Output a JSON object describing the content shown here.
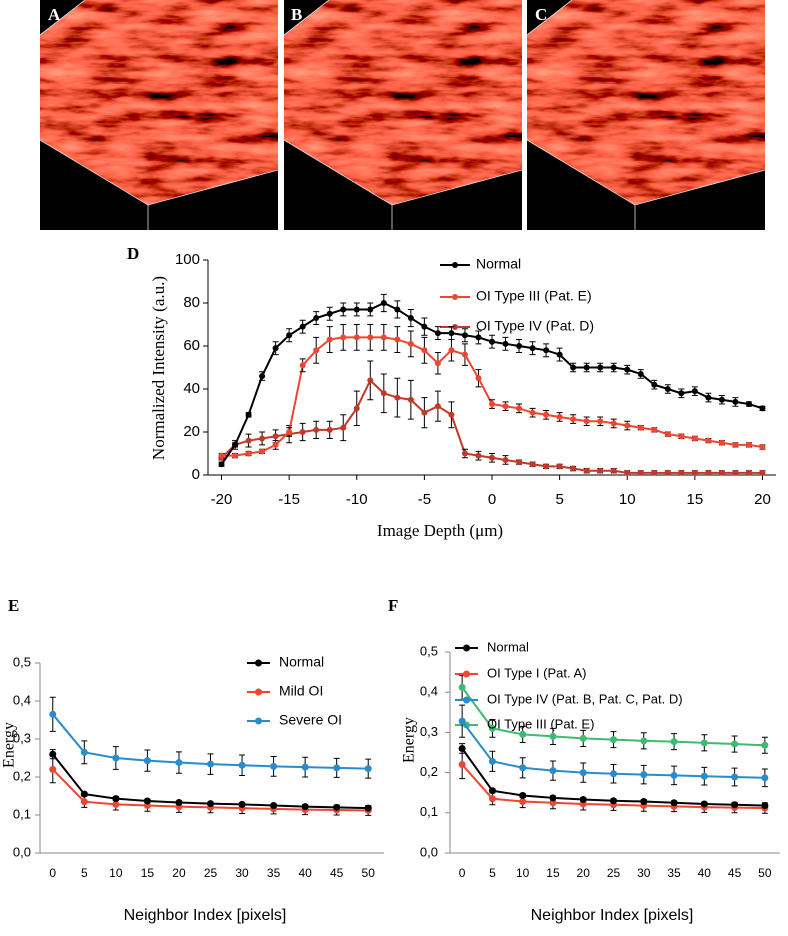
{
  "images": [
    {
      "label": "A"
    },
    {
      "label": "B"
    },
    {
      "label": "C"
    }
  ],
  "chart_data": [
    {
      "type": "line",
      "panel": "D",
      "ylabel": "Normalized Intensity (a.u.)",
      "xlabel": "Image Depth (μm)",
      "x": [
        -20,
        -19,
        -18,
        -17,
        -16,
        -15,
        -14,
        -13,
        -12,
        -11,
        -10,
        -9,
        -8,
        -7,
        -6,
        -5,
        -4,
        -3,
        -2,
        -1,
        0,
        1,
        2,
        3,
        4,
        5,
        6,
        7,
        8,
        9,
        10,
        11,
        12,
        13,
        14,
        15,
        16,
        17,
        18,
        19,
        20
      ],
      "xlim": [
        -21,
        21
      ],
      "ylim": [
        0,
        100
      ],
      "xticks": [
        -20,
        -15,
        -10,
        -5,
        0,
        5,
        10,
        15,
        20
      ],
      "yticks": [
        0,
        20,
        40,
        60,
        80,
        100
      ],
      "series": [
        {
          "name": "Normal",
          "color": "#000000",
          "values": [
            5,
            14,
            28,
            46,
            59,
            65,
            69,
            73,
            75,
            77,
            77,
            77,
            80,
            77,
            73,
            69,
            66,
            66,
            65,
            64,
            62,
            61,
            60,
            59,
            58,
            56,
            50,
            50,
            50,
            50,
            49,
            47,
            42,
            40,
            38,
            39,
            36,
            35,
            34,
            33,
            31
          ],
          "errors": [
            1,
            1,
            1,
            2,
            3,
            3,
            3,
            3,
            3,
            3,
            3,
            3,
            4,
            4,
            4,
            4,
            3,
            3,
            3,
            3,
            3,
            3,
            3,
            3,
            3,
            3,
            2,
            2,
            2,
            2,
            2,
            2,
            2,
            2,
            2,
            2,
            2,
            2,
            2,
            1,
            1
          ]
        },
        {
          "name": "OI Type III (Pat. E)",
          "color": "#ee4630",
          "values": [
            9,
            9,
            10,
            11,
            14,
            20,
            51,
            58,
            63,
            64,
            64,
            64,
            64,
            63,
            61,
            58,
            52,
            58,
            56,
            45,
            33,
            32,
            31,
            29,
            28,
            27,
            26,
            25,
            25,
            24,
            23,
            22,
            21,
            19,
            18,
            17,
            16,
            15,
            14,
            14,
            13
          ],
          "errors": [
            1,
            1,
            1,
            1,
            2,
            2,
            3,
            6,
            6,
            6,
            6,
            6,
            6,
            6,
            6,
            6,
            5,
            5,
            5,
            4,
            2,
            2,
            2,
            2,
            2,
            2,
            2,
            2,
            2,
            2,
            2,
            1,
            1,
            1,
            1,
            1,
            1,
            1,
            1,
            1,
            1
          ]
        },
        {
          "name": "OI Type IV (Pat. D)",
          "color": "#c0392b",
          "values": [
            8,
            14,
            16,
            17,
            18,
            19,
            20,
            21,
            21,
            22,
            31,
            44,
            38,
            36,
            35,
            29,
            32,
            28,
            10,
            9,
            8,
            7,
            6,
            5,
            4,
            4,
            3,
            2,
            2,
            2,
            1,
            1,
            1,
            1,
            1,
            1,
            1,
            1,
            1,
            1,
            1
          ],
          "errors": [
            1,
            2,
            3,
            3,
            3,
            4,
            4,
            4,
            4,
            6,
            8,
            9,
            9,
            9,
            9,
            7,
            7,
            6,
            2,
            2,
            2,
            2,
            1,
            1,
            1,
            1,
            1,
            1,
            1,
            1,
            1,
            1,
            1,
            1,
            1,
            1,
            1,
            1,
            1,
            1,
            1
          ]
        }
      ]
    },
    {
      "type": "line",
      "panel": "E",
      "ylabel": "Energy",
      "xlabel": "Neighbor Index [pixels]",
      "categories": [
        0,
        5,
        10,
        15,
        20,
        25,
        30,
        35,
        40,
        45,
        50
      ],
      "ylim": [
        0,
        0.5
      ],
      "yticks": [
        {
          "value": 0,
          "label": "0,0"
        },
        {
          "value": 0.1,
          "label": "0,1"
        },
        {
          "value": 0.2,
          "label": "0,2"
        },
        {
          "value": 0.3,
          "label": "0,3"
        },
        {
          "value": 0.4,
          "label": "0,4"
        },
        {
          "value": 0.5,
          "label": "0,5"
        }
      ],
      "series": [
        {
          "name": "Normal",
          "color": "#000000",
          "values": [
            0.26,
            0.155,
            0.143,
            0.137,
            0.133,
            0.13,
            0.128,
            0.125,
            0.122,
            0.12,
            0.118
          ],
          "errors": [
            0.012,
            0.005,
            0.005,
            0.005,
            0.004,
            0.004,
            0.004,
            0.004,
            0.004,
            0.004,
            0.004
          ]
        },
        {
          "name": "Mild OI",
          "color": "#ee4630",
          "values": [
            0.22,
            0.135,
            0.128,
            0.125,
            0.122,
            0.12,
            0.118,
            0.116,
            0.114,
            0.113,
            0.112
          ],
          "errors": [
            0.035,
            0.015,
            0.015,
            0.015,
            0.015,
            0.014,
            0.014,
            0.013,
            0.013,
            0.013,
            0.013
          ]
        },
        {
          "name": "Severe OI",
          "color": "#2a8ccc",
          "values": [
            0.365,
            0.265,
            0.25,
            0.243,
            0.238,
            0.234,
            0.231,
            0.228,
            0.226,
            0.224,
            0.222
          ],
          "errors": [
            0.045,
            0.03,
            0.03,
            0.028,
            0.028,
            0.027,
            0.027,
            0.026,
            0.026,
            0.025,
            0.025
          ]
        }
      ]
    },
    {
      "type": "line",
      "panel": "F",
      "ylabel": "Energy",
      "xlabel": "Neighbor Index [pixels]",
      "categories": [
        0,
        5,
        10,
        15,
        20,
        25,
        30,
        35,
        40,
        45,
        50
      ],
      "ylim": [
        0,
        0.5
      ],
      "yticks": [
        {
          "value": 0,
          "label": "0,0"
        },
        {
          "value": 0.1,
          "label": "0,1"
        },
        {
          "value": 0.2,
          "label": "0,2"
        },
        {
          "value": 0.3,
          "label": "0,3"
        },
        {
          "value": 0.4,
          "label": "0,4"
        },
        {
          "value": 0.5,
          "label": "0,5"
        }
      ],
      "series": [
        {
          "name": "Normal",
          "color": "#000000",
          "values": [
            0.26,
            0.155,
            0.143,
            0.137,
            0.133,
            0.13,
            0.128,
            0.125,
            0.122,
            0.12,
            0.118
          ],
          "errors": [
            0.012,
            0.005,
            0.005,
            0.005,
            0.004,
            0.004,
            0.004,
            0.004,
            0.004,
            0.004,
            0.004
          ]
        },
        {
          "name": "OI Type I (Pat. A)",
          "color": "#ee4630",
          "values": [
            0.22,
            0.135,
            0.128,
            0.125,
            0.122,
            0.12,
            0.118,
            0.116,
            0.114,
            0.113,
            0.112
          ],
          "errors": [
            0.035,
            0.015,
            0.015,
            0.015,
            0.015,
            0.014,
            0.014,
            0.013,
            0.013,
            0.013,
            0.013
          ]
        },
        {
          "name": "OI Type IV (Pat. B, Pat. C, Pat. D)",
          "color": "#2a8ccc",
          "values": [
            0.328,
            0.228,
            0.212,
            0.205,
            0.2,
            0.197,
            0.195,
            0.193,
            0.191,
            0.189,
            0.187
          ],
          "errors": [
            0.04,
            0.025,
            0.025,
            0.024,
            0.024,
            0.023,
            0.023,
            0.023,
            0.022,
            0.022,
            0.022
          ]
        },
        {
          "name": "OI Type III (Pat. E)",
          "color": "#3dbb6e",
          "values": [
            0.412,
            0.31,
            0.295,
            0.29,
            0.285,
            0.282,
            0.279,
            0.277,
            0.274,
            0.271,
            0.268
          ],
          "errors": [
            0.03,
            0.022,
            0.02,
            0.02,
            0.02,
            0.02,
            0.02,
            0.02,
            0.02,
            0.02,
            0.02
          ]
        }
      ]
    }
  ]
}
